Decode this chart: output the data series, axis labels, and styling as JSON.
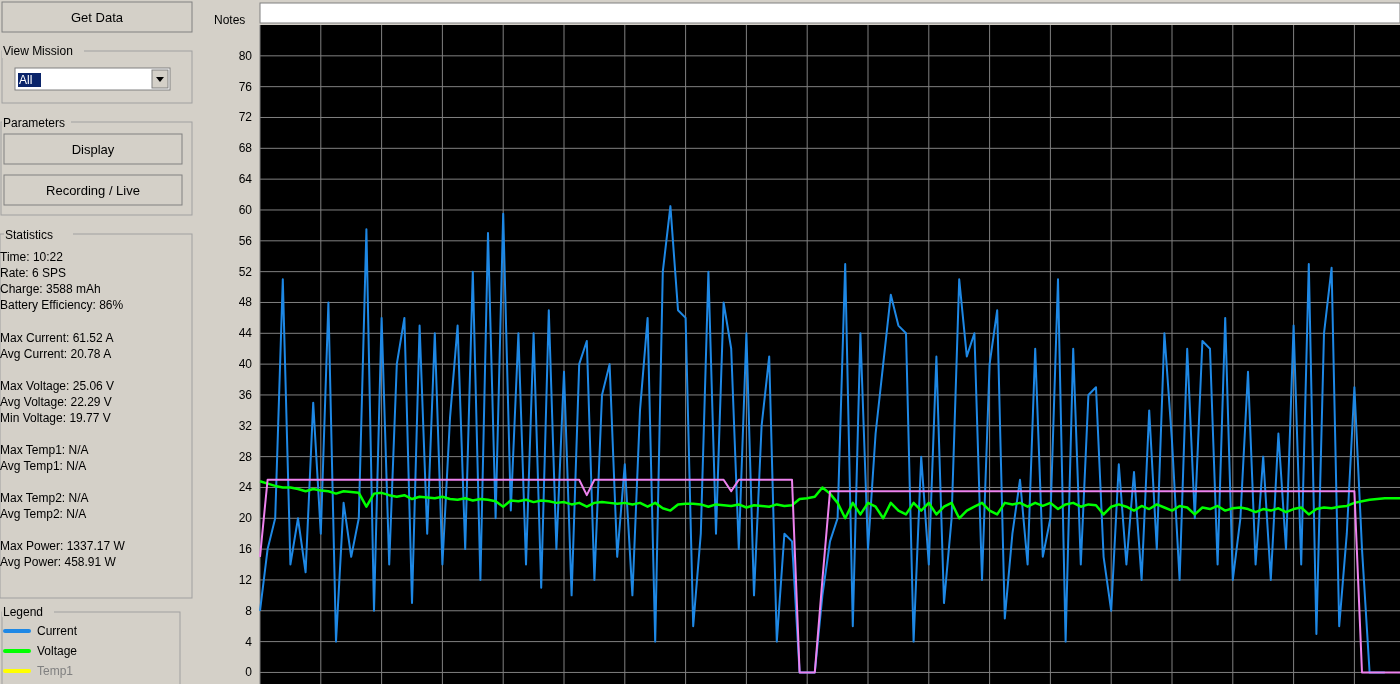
{
  "chart_data": {
    "type": "line",
    "legend_title": "Legend",
    "legend": "left",
    "grid": true,
    "marker": "none",
    "line_style": "solid",
    "tick_labels": "y",
    "categories": [
      null,
      null,
      null,
      null,
      null,
      null,
      null,
      null,
      null,
      null,
      null,
      null,
      null,
      null,
      null,
      null,
      null,
      null,
      null,
      null,
      null,
      null,
      null,
      null,
      null,
      null,
      null,
      null,
      null,
      null,
      null,
      null,
      null,
      null,
      null,
      null,
      null,
      null,
      null,
      null,
      null,
      null,
      null,
      null,
      null,
      null,
      null,
      null,
      null,
      null,
      null,
      null,
      null,
      null,
      null,
      null,
      null,
      null,
      null,
      null,
      null,
      null,
      null,
      null,
      null,
      null,
      null,
      null,
      null,
      null,
      null,
      null,
      null,
      null,
      null,
      null,
      null,
      null,
      null,
      null,
      null,
      null,
      null,
      null,
      null,
      null,
      null,
      null,
      null,
      null,
      null,
      null,
      null,
      null,
      null,
      null,
      null,
      null,
      null,
      null,
      null,
      null,
      null,
      null,
      null,
      null,
      null,
      null,
      null,
      null,
      null,
      null,
      null,
      null,
      null,
      null,
      null,
      null,
      null,
      null,
      null,
      null,
      null,
      null,
      null,
      null,
      null,
      null,
      null,
      null,
      null,
      null,
      null,
      null,
      null,
      null,
      null,
      null,
      null,
      null,
      null,
      null,
      null,
      null,
      null,
      null,
      null,
      null,
      null,
      null,
      null
    ],
    "ylim": [
      -1.5,
      84
    ],
    "yticks": [
      0,
      4,
      8,
      12,
      16,
      20,
      24,
      28,
      32,
      36,
      40,
      44,
      48,
      52,
      56,
      60,
      64,
      68,
      72,
      76,
      80
    ],
    "series": [
      {
        "name": "Current",
        "color": "#1e88e5",
        "values": [
          8,
          16,
          20,
          51,
          14,
          20,
          13,
          35,
          18,
          48,
          4,
          22,
          15,
          20,
          57.5,
          8,
          46,
          14,
          40,
          46,
          9,
          45,
          18,
          44,
          14,
          33,
          45,
          16,
          52,
          12,
          57,
          20,
          59.5,
          21,
          44,
          14,
          44,
          11,
          47,
          16,
          39,
          10,
          40,
          43,
          12,
          36,
          40,
          15,
          27,
          10,
          34,
          46,
          4,
          52,
          60.5,
          47,
          46,
          6,
          18,
          52,
          18,
          48,
          42,
          16,
          44,
          10,
          32,
          41,
          4,
          18,
          17,
          0,
          0,
          0,
          10,
          17,
          20,
          53,
          6,
          44,
          16,
          31,
          40,
          49,
          45,
          44,
          4,
          28,
          14,
          41,
          9,
          20,
          51,
          41,
          44,
          12,
          40,
          47,
          7,
          18,
          25,
          14,
          42,
          15,
          20,
          51,
          4,
          42,
          14,
          36,
          37,
          15,
          8,
          27,
          14,
          26,
          12,
          34,
          16,
          44,
          30,
          12,
          42,
          20,
          43,
          42,
          14,
          46,
          12,
          20,
          39,
          14,
          28,
          12,
          31,
          16,
          45,
          14,
          53,
          5,
          44,
          52.5,
          6,
          18,
          37,
          16,
          0,
          0,
          0,
          null,
          null
        ]
      },
      {
        "name": "Voltage",
        "color": "#00ff00",
        "values": [
          24.8,
          24.5,
          24.2,
          24,
          24,
          23.8,
          23.5,
          23.8,
          23.6,
          23.5,
          23.2,
          23.5,
          23.4,
          23.3,
          21.5,
          23.2,
          23.3,
          23,
          22.8,
          23,
          22.5,
          22.8,
          22.7,
          22.6,
          22.8,
          22.5,
          22.4,
          22.6,
          22.3,
          22.5,
          22.4,
          22.2,
          21.5,
          22.3,
          22.2,
          22.4,
          22.1,
          22.3,
          22.2,
          22,
          22.1,
          21.8,
          22,
          21.5,
          22,
          22.1,
          22,
          21.9,
          22,
          21.8,
          22,
          21.5,
          22,
          21.3,
          21,
          21.8,
          21.9,
          21.9,
          21.8,
          21.5,
          21.8,
          21.7,
          21.6,
          21.8,
          21.4,
          21.7,
          21.6,
          21.5,
          21.8,
          21.6,
          21.7,
          22.5,
          22.6,
          22.8,
          24,
          23.2,
          22,
          20,
          22,
          20.5,
          22,
          21.5,
          20,
          22,
          21,
          20.5,
          22,
          21,
          22,
          20.5,
          21.5,
          22,
          20,
          21,
          21.5,
          22,
          21,
          20.5,
          22,
          21.8,
          22,
          21.5,
          22,
          21.6,
          22,
          21.2,
          21.8,
          22,
          21.5,
          21.8,
          21.7,
          20.5,
          21.5,
          21.8,
          21.5,
          21,
          21.6,
          21.2,
          21.8,
          21.4,
          21,
          21.6,
          21.4,
          20.5,
          21.4,
          21.2,
          21.6,
          21,
          21.3,
          21.4,
          21.2,
          20.8,
          21.2,
          21,
          21.3,
          20.8,
          21.2,
          21.4,
          20.5,
          21.2,
          21.4,
          21.3,
          21.5,
          21.6,
          22,
          22.2,
          22.4,
          22.5,
          22.6,
          22.6,
          22.6
        ]
      },
      {
        "name": "Temp1",
        "color": "#ffff00",
        "values": [
          null,
          null,
          null,
          null,
          null,
          null,
          null,
          null,
          null,
          null,
          null,
          null,
          null,
          null,
          null,
          null,
          null,
          null,
          null,
          null,
          null,
          null,
          null,
          null,
          null,
          null,
          null,
          null,
          null,
          null,
          null,
          null,
          null,
          null,
          null,
          null,
          null,
          null,
          null,
          null,
          null,
          null,
          null,
          null,
          null,
          null,
          null,
          null,
          null,
          null,
          null,
          null,
          null,
          null,
          null,
          null,
          null,
          null,
          null,
          null,
          null,
          null,
          null,
          null,
          null,
          null,
          null,
          null,
          null,
          null,
          null,
          null,
          null,
          null,
          null,
          null,
          null,
          null,
          null,
          null,
          null,
          null,
          null,
          null,
          null,
          null,
          null,
          null,
          null,
          null,
          null,
          null,
          null,
          null,
          null,
          null,
          null,
          null,
          null,
          null,
          null,
          null,
          null,
          null,
          null,
          null,
          null,
          null,
          null,
          null,
          null,
          null,
          null,
          null,
          null,
          null,
          null,
          null,
          null,
          null,
          null,
          null,
          null,
          null,
          null,
          null,
          null,
          null,
          null,
          null,
          null,
          null,
          null,
          null,
          null,
          null,
          null,
          null,
          null,
          null,
          null,
          null,
          null,
          null,
          null,
          null,
          null,
          null,
          null,
          null,
          null
        ]
      },
      {
        "color": "#ee82ee",
        "values": [
          15,
          25,
          25,
          25,
          25,
          25,
          25,
          25,
          25,
          25,
          25,
          25,
          25,
          25,
          25,
          25,
          25,
          25,
          25,
          25,
          25,
          25,
          25,
          25,
          25,
          25,
          25,
          25,
          25,
          25,
          25,
          25,
          25,
          25,
          25,
          25,
          25,
          25,
          25,
          25,
          25,
          25,
          25,
          23,
          25,
          25,
          25,
          25,
          25,
          25,
          25,
          25,
          25,
          25,
          25,
          25,
          25,
          25,
          25,
          25,
          25,
          25,
          23.5,
          25,
          25,
          25,
          25,
          25,
          25,
          25,
          25,
          0,
          0,
          0,
          12,
          23.5,
          23.5,
          23.5,
          23.5,
          23.5,
          23.5,
          23.5,
          23.5,
          23.5,
          23.5,
          23.5,
          23.5,
          23.5,
          23.5,
          23.5,
          23.5,
          23.5,
          23.5,
          23.5,
          23.5,
          23.5,
          23.5,
          23.5,
          23.5,
          23.5,
          23.5,
          23.5,
          23.5,
          23.5,
          23.5,
          23.5,
          23.5,
          23.5,
          23.5,
          23.5,
          23.5,
          23.5,
          23.5,
          23.5,
          23.5,
          23.5,
          23.5,
          23.5,
          23.5,
          23.5,
          23.5,
          23.5,
          23.5,
          23.5,
          23.5,
          23.5,
          23.5,
          23.5,
          23.5,
          23.5,
          23.5,
          23.5,
          23.5,
          23.5,
          23.5,
          23.5,
          23.5,
          23.5,
          23.5,
          23.5,
          23.5,
          23.5,
          23.5,
          23.5,
          23.5,
          0,
          0,
          0,
          0,
          0,
          0
        ]
      }
    ],
    "annotations": [
      "Get Data",
      "View Mission",
      "All",
      "Parameters",
      "Display",
      "Recording / Live",
      "Statistics",
      "Time: 10:22",
      "Rate: 6 SPS",
      "Charge: 3588 mAh",
      "Battery Efficiency: 86%",
      "Max Current: 61.52 A",
      "Avg Current: 20.78 A",
      "Max Voltage: 25.06 V",
      "Avg Voltage: 22.29 V",
      "Min Voltage: 19.77 V",
      "Max Temp1: N/A",
      "Avg Temp1: N/A",
      "Max Temp2: N/A",
      "Avg Temp2: N/A",
      "Max Power: 1337.17 W",
      "Avg Power: 458.91 W",
      "Notes"
    ]
  }
}
